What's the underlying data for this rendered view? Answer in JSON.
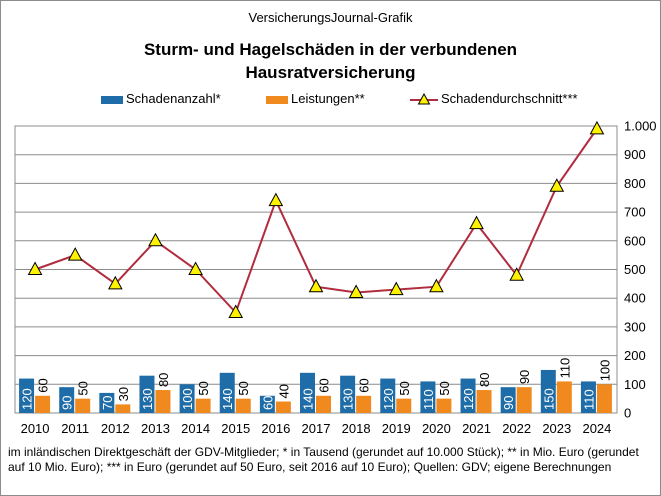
{
  "source": "VersicherungsJournal-Grafik",
  "title_lines": [
    "Sturm- und  Hagelschäden  in der verbundenen",
    "Hausratversicherung"
  ],
  "legend": {
    "schadenanzahl": "Schadenanzahl*",
    "leistungen": "Leistungen**",
    "schadendurchschnitt": "Schadendurchschnitt***"
  },
  "footnote": "im inländischen Direktgeschäft der GDV-Mitglieder;  * in Tausend  (gerundet  auf 10.000 Stück); ** in Mio. Euro (gerundet  auf 10 Mio. Euro); *** in Euro (gerundet auf 50 Euro, seit 2016 auf 10 Euro); Quellen:  GDV; eigene Berechnungen",
  "colors": {
    "schadenanzahl": "#1F6DA8",
    "leistungen": "#F08A1E",
    "line": "#B02C3E",
    "marker": "#FFF200"
  },
  "chart_data": {
    "type": "bar+line",
    "categories": [
      "2010",
      "2011",
      "2012",
      "2013",
      "2014",
      "2015",
      "2016",
      "2017",
      "2018",
      "2019",
      "2020",
      "2021",
      "2022",
      "2023",
      "2024"
    ],
    "series": [
      {
        "name": "Schadenanzahl*",
        "type": "bar",
        "values": [
          120,
          90,
          70,
          130,
          100,
          140,
          60,
          140,
          130,
          120,
          110,
          120,
          90,
          150,
          110
        ]
      },
      {
        "name": "Leistungen**",
        "type": "bar",
        "values": [
          60,
          50,
          30,
          80,
          50,
          50,
          40,
          60,
          60,
          50,
          50,
          80,
          90,
          110,
          100
        ]
      },
      {
        "name": "Schadendurchschnitt***",
        "type": "line",
        "values": [
          500,
          550,
          450,
          600,
          500,
          350,
          740,
          440,
          420,
          430,
          440,
          660,
          480,
          790,
          990
        ]
      }
    ],
    "ylim": [
      0,
      1000
    ],
    "yticks": [
      0,
      100,
      200,
      300,
      400,
      500,
      600,
      700,
      800,
      900,
      1000
    ],
    "ytick_labels": [
      "0",
      "100",
      "200",
      "300",
      "400",
      "500",
      "600",
      "700",
      "800",
      "900",
      "1.000"
    ],
    "grid": true,
    "legend_position": "top"
  }
}
